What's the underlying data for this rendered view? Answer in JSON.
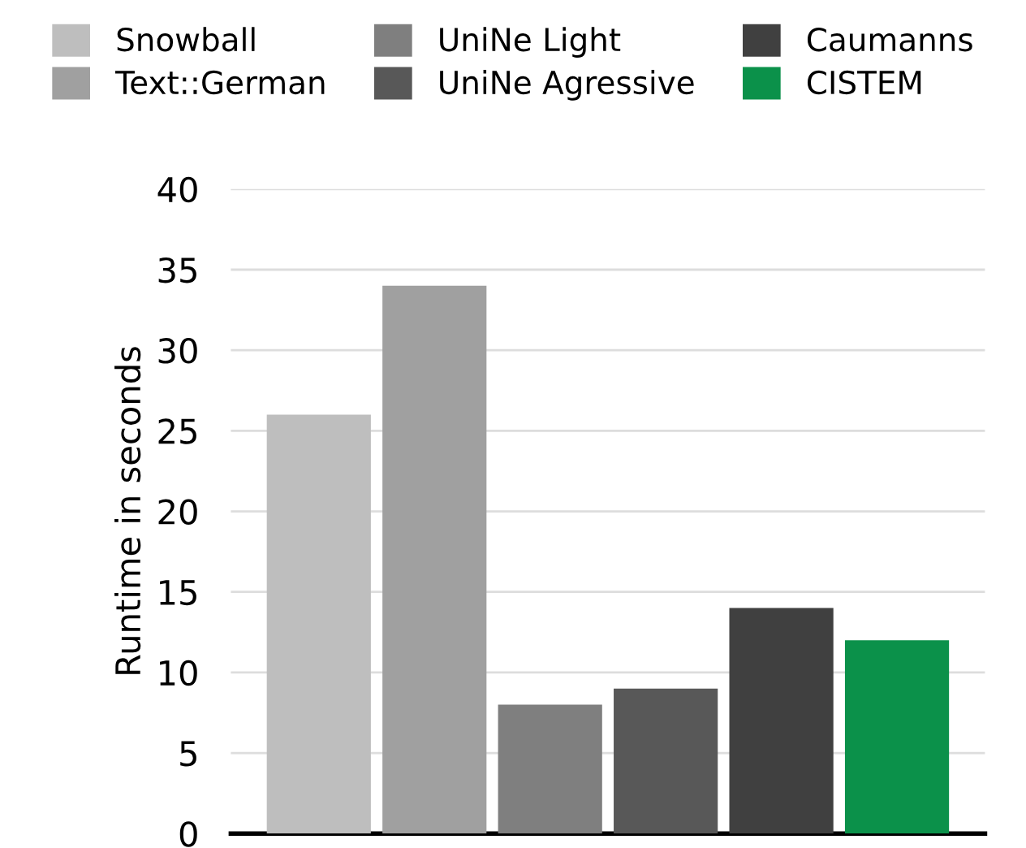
{
  "chart_data": {
    "type": "bar",
    "ylabel": "Runtime in seconds",
    "categories": [
      null
    ],
    "series": [
      {
        "name": "Snowball",
        "color": "#bebebe",
        "values": [
          26
        ]
      },
      {
        "name": "Text::German",
        "color": "#a0a0a0",
        "values": [
          34
        ]
      },
      {
        "name": "UniNe Light",
        "color": "#7f7f7f",
        "values": [
          8
        ]
      },
      {
        "name": "UniNe Agressive",
        "color": "#585858",
        "values": [
          9
        ]
      },
      {
        "name": "Caumanns",
        "color": "#404040",
        "values": [
          14
        ]
      },
      {
        "name": "CISTEM",
        "color": "#0b914a",
        "values": [
          12
        ]
      }
    ],
    "ylim": [
      0,
      40
    ],
    "yticks": [
      0,
      5,
      10,
      15,
      20,
      25,
      30,
      35,
      40
    ],
    "grid": "y",
    "legend": "top"
  }
}
